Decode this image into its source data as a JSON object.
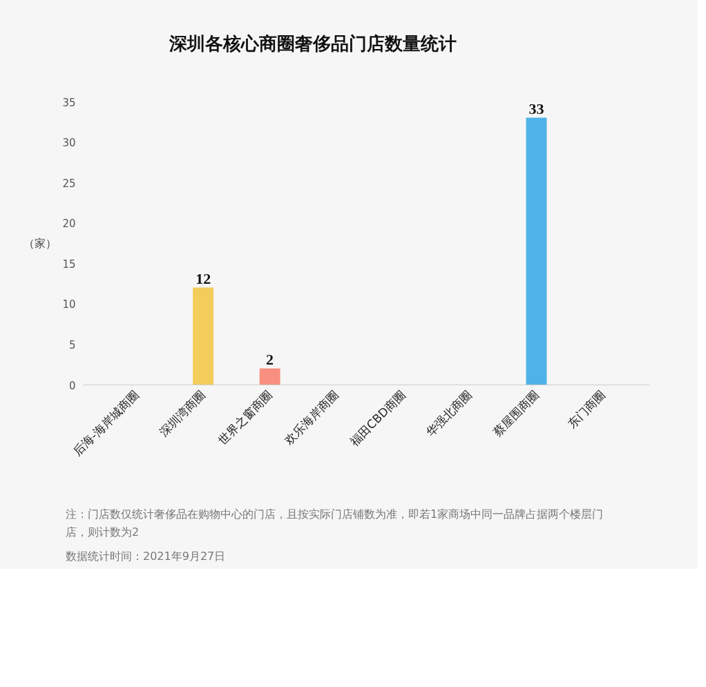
{
  "chart_data": {
    "type": "bar",
    "title": "深圳各核心商圈奢侈品门店数量统计",
    "ylabel": "（家）",
    "categories": [
      "后海-海岸城商圈",
      "深圳湾商圈",
      "世界之窗商圈",
      "欢乐海岸商圈",
      "福田CBD商圈",
      "华强北商圈",
      "蔡屋围商圈",
      "东门商圈"
    ],
    "values": [
      0,
      12,
      2,
      0,
      0,
      0,
      33,
      0
    ],
    "colors": [
      "#4fb3e8",
      "#f2cd5c",
      "#f88f7f",
      "#4fb3e8",
      "#4fb3e8",
      "#4fb3e8",
      "#4fb3e8",
      "#4fb3e8"
    ],
    "value_labels": [
      null,
      "12",
      "2",
      null,
      null,
      null,
      "33",
      null
    ],
    "ylim": [
      0,
      35
    ],
    "yticks": [
      0,
      5,
      10,
      15,
      20,
      25,
      30,
      35
    ],
    "grid": false,
    "annotations": [
      "注：门店数仅统计奢侈品在购物中心的门店，且按实际门店铺数为准，即若1家商场中同一品牌占据两个楼层门店，则计数为2",
      "数据统计时间：2021年9月27日"
    ]
  }
}
